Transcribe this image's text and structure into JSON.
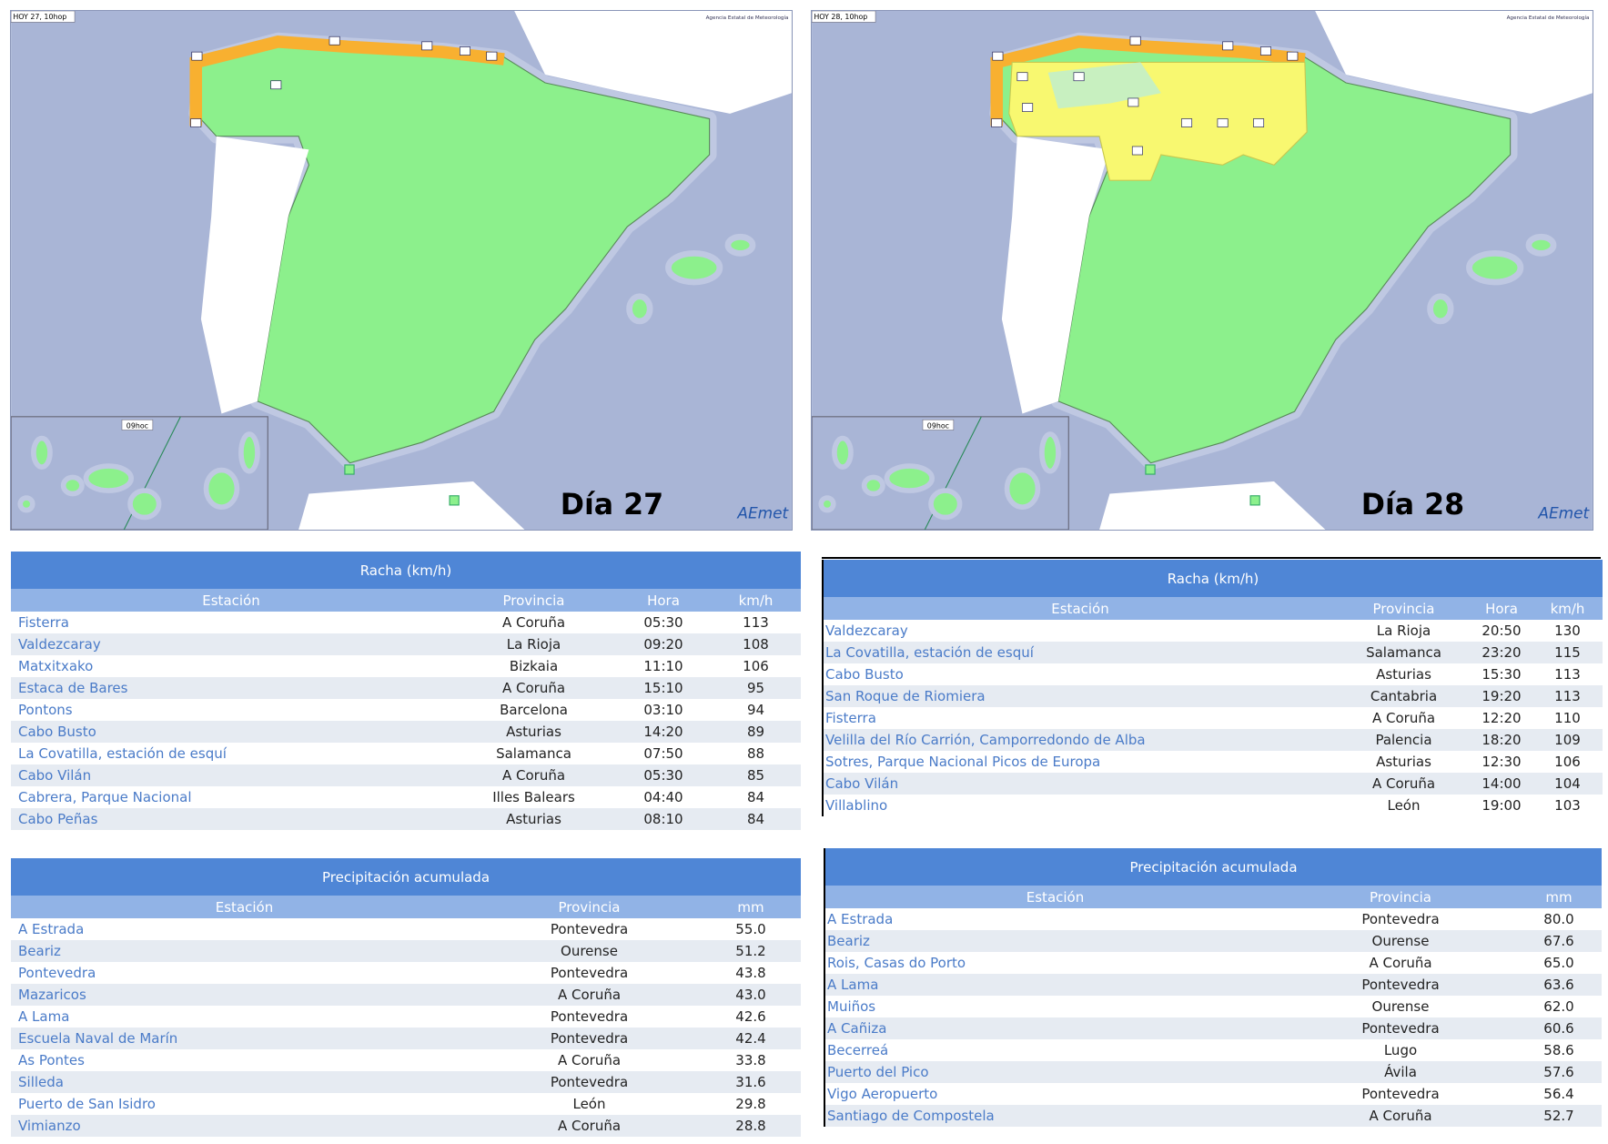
{
  "maps": [
    {
      "header": "HOY 27, 10hop",
      "logo_caption": "Agencia Estatal de Meteorología",
      "inset_label": "09hoc",
      "day": "Día 27",
      "brand": "AEmet"
    },
    {
      "header": "HOY 28, 10hop",
      "logo_caption": "Agencia Estatal de Meteorología",
      "inset_label": "09hoc",
      "day": "Día 28",
      "brand": "AEmet"
    }
  ],
  "tables": [
    {
      "title": "Racha (km/h)",
      "columns": [
        "Estación",
        "Provincia",
        "Hora",
        "km/h"
      ],
      "rows": [
        [
          "Fisterra",
          "A Coruña",
          "05:30",
          "113"
        ],
        [
          "Valdezcaray",
          "La Rioja",
          "09:20",
          "108"
        ],
        [
          "Matxitxako",
          "Bizkaia",
          "11:10",
          "106"
        ],
        [
          "Estaca de Bares",
          "A Coruña",
          "15:10",
          "95"
        ],
        [
          "Pontons",
          "Barcelona",
          "03:10",
          "94"
        ],
        [
          "Cabo Busto",
          "Asturias",
          "14:20",
          "89"
        ],
        [
          "La Covatilla, estación de esquí",
          "Salamanca",
          "07:50",
          "88"
        ],
        [
          "Cabo Vilán",
          "A Coruña",
          "05:30",
          "85"
        ],
        [
          "Cabrera, Parque Nacional",
          "Illes Balears",
          "04:40",
          "84"
        ],
        [
          "Cabo Peñas",
          "Asturias",
          "08:10",
          "84"
        ]
      ]
    },
    {
      "title": "Precipitación acumulada",
      "columns": [
        "Estación",
        "Provincia",
        "mm"
      ],
      "rows": [
        [
          "A Estrada",
          "Pontevedra",
          "55.0"
        ],
        [
          "Beariz",
          "Ourense",
          "51.2"
        ],
        [
          "Pontevedra",
          "Pontevedra",
          "43.8"
        ],
        [
          "Mazaricos",
          "A Coruña",
          "43.0"
        ],
        [
          "A Lama",
          "Pontevedra",
          "42.6"
        ],
        [
          "Escuela Naval de Marín",
          "Pontevedra",
          "42.4"
        ],
        [
          "As Pontes",
          "A Coruña",
          "33.8"
        ],
        [
          "Silleda",
          "Pontevedra",
          "31.6"
        ],
        [
          "Puerto de San Isidro",
          "León",
          "29.8"
        ],
        [
          "Vimianzo",
          "A Coruña",
          "28.8"
        ]
      ]
    },
    {
      "title": "Racha (km/h)",
      "columns": [
        "Estación",
        "Provincia",
        "Hora",
        "km/h"
      ],
      "rows": [
        [
          "Valdezcaray",
          "La Rioja",
          "20:50",
          "130"
        ],
        [
          "La Covatilla, estación de esquí",
          "Salamanca",
          "23:20",
          "115"
        ],
        [
          "Cabo Busto",
          "Asturias",
          "15:30",
          "113"
        ],
        [
          "San Roque de Riomiera",
          "Cantabria",
          "19:20",
          "113"
        ],
        [
          "Fisterra",
          "A Coruña",
          "12:20",
          "110"
        ],
        [
          "Velilla del Río Carrión, Camporredondo de Alba",
          "Palencia",
          "18:20",
          "109"
        ],
        [
          "Sotres, Parque Nacional Picos de Europa",
          "Asturias",
          "12:30",
          "106"
        ],
        [
          "Cabo Vilán",
          "A Coruña",
          "14:00",
          "104"
        ],
        [
          "Villablino",
          "León",
          "19:00",
          "103"
        ]
      ]
    },
    {
      "title": "Precipitación acumulada",
      "columns": [
        "Estación",
        "Provincia",
        "mm"
      ],
      "rows": [
        [
          "A Estrada",
          "Pontevedra",
          "80.0"
        ],
        [
          "Beariz",
          "Ourense",
          "67.6"
        ],
        [
          "Rois, Casas do Porto",
          "A Coruña",
          "65.0"
        ],
        [
          "A Lama",
          "Pontevedra",
          "63.6"
        ],
        [
          "Muiños",
          "Ourense",
          "62.0"
        ],
        [
          "A Cañiza",
          "Pontevedra",
          "60.6"
        ],
        [
          "Becerreá",
          "Lugo",
          "58.6"
        ],
        [
          "Puerto del Pico",
          "Ávila",
          "57.6"
        ],
        [
          "Vigo Aeropuerto",
          "Pontevedra",
          "56.4"
        ],
        [
          "Santiago de Compostela",
          "A Coruña",
          "52.7"
        ]
      ]
    }
  ]
}
